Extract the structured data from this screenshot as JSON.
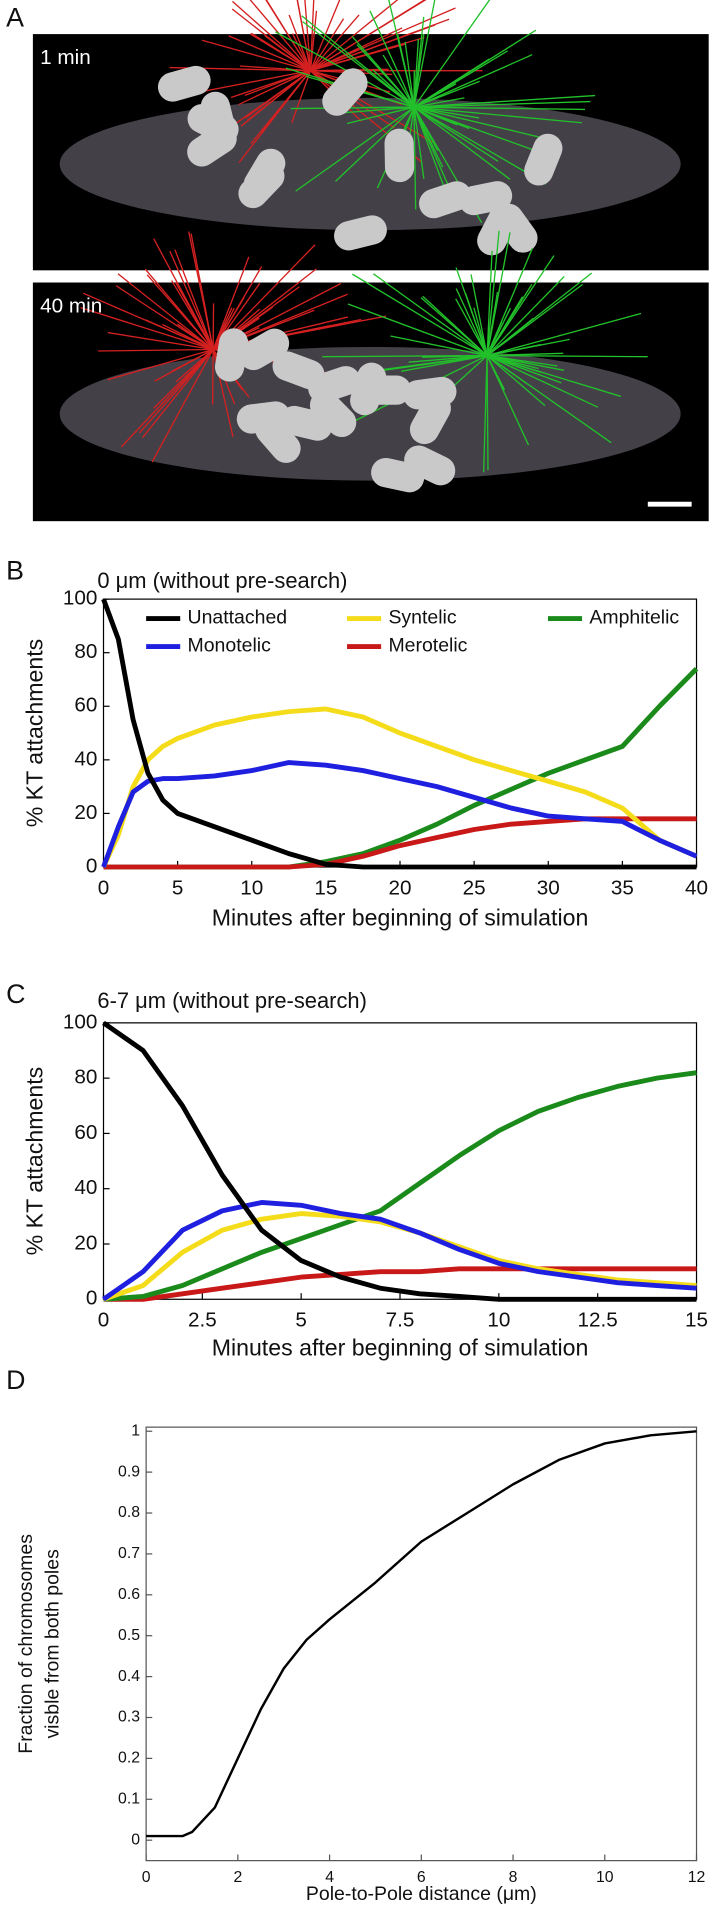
{
  "panel_a": {
    "panel_label": "A",
    "images": [
      {
        "label": "1 min"
      },
      {
        "label": "40 min"
      }
    ]
  },
  "chart_data": [
    {
      "type": "line",
      "panel_label": "B",
      "title": "0 μm (without pre-search)",
      "x_label": "Minutes after beginning of simulation",
      "y_label": "% KT attachments",
      "x": [
        0,
        1,
        2,
        3,
        4,
        5,
        7.5,
        10,
        12.5,
        15,
        17.5,
        20,
        22.5,
        25,
        27.5,
        30,
        32.5,
        35,
        37.5,
        40
      ],
      "xlim": [
        0,
        40
      ],
      "xticks": [
        0,
        5,
        10,
        15,
        20,
        25,
        30,
        35,
        40
      ],
      "ylim": [
        0,
        100
      ],
      "yticks": [
        0,
        20,
        40,
        60,
        80,
        100
      ],
      "legend": true,
      "series": [
        {
          "name": "Unattached",
          "color": "#000000",
          "values": [
            100,
            85,
            55,
            35,
            25,
            20,
            15,
            10,
            5,
            1,
            0,
            0,
            0,
            0,
            0,
            0,
            0,
            0,
            0,
            0
          ]
        },
        {
          "name": "Syntelic",
          "color": "#f5dc1a",
          "values": [
            0,
            12,
            30,
            40,
            45,
            48,
            53,
            56,
            58,
            59,
            56,
            50,
            45,
            40,
            36,
            32,
            28,
            22,
            10,
            4
          ]
        },
        {
          "name": "Amphitelic",
          "color": "#1a8a1a",
          "values": [
            0,
            0,
            0,
            0,
            0,
            0,
            0,
            0,
            0,
            2,
            5,
            10,
            16,
            23,
            29,
            35,
            40,
            45,
            60,
            74
          ]
        },
        {
          "name": "Monotelic",
          "color": "#1f1fe0",
          "values": [
            0,
            15,
            28,
            32,
            33,
            33,
            34,
            36,
            39,
            38,
            36,
            33,
            30,
            26,
            22,
            19,
            18,
            17,
            10,
            4
          ]
        },
        {
          "name": "Merotelic",
          "color": "#c81818",
          "values": [
            0,
            0,
            0,
            0,
            0,
            0,
            0,
            0,
            0,
            1,
            4,
            8,
            11,
            14,
            16,
            17,
            18,
            18,
            18,
            18
          ]
        }
      ]
    },
    {
      "type": "line",
      "panel_label": "C",
      "title": "6-7 μm (without pre-search)",
      "x_label": "Minutes after beginning of simulation",
      "y_label": "% KT attachments",
      "x": [
        0,
        1,
        2,
        3,
        4,
        5,
        6,
        7,
        8,
        9,
        10,
        11,
        12,
        13,
        14,
        15
      ],
      "xlim": [
        0,
        15
      ],
      "xticks": [
        0,
        2.5,
        5,
        7.5,
        10,
        12.5,
        15
      ],
      "ylim": [
        0,
        100
      ],
      "yticks": [
        0,
        20,
        40,
        60,
        80,
        100
      ],
      "legend": false,
      "series": [
        {
          "color": "#c81818",
          "values": [
            0,
            0,
            2,
            4,
            6,
            8,
            9,
            10,
            10,
            11,
            11,
            11,
            11,
            11,
            11,
            11
          ]
        },
        {
          "color": "#1a8a1a",
          "values": [
            0,
            1,
            5,
            11,
            17,
            22,
            27,
            32,
            42,
            52,
            61,
            68,
            73,
            77,
            80,
            82
          ]
        },
        {
          "color": "#f5dc1a",
          "values": [
            0,
            5,
            17,
            25,
            29,
            31,
            30,
            28,
            24,
            19,
            14,
            11,
            9,
            7,
            6,
            5
          ]
        },
        {
          "color": "#1f1fe0",
          "values": [
            0,
            10,
            25,
            32,
            35,
            34,
            31,
            29,
            24,
            18,
            13,
            10,
            8,
            6,
            5,
            4
          ]
        },
        {
          "color": "#000000",
          "values": [
            100,
            90,
            70,
            45,
            25,
            14,
            8,
            4,
            2,
            1,
            0,
            0,
            0,
            0,
            0,
            0
          ]
        }
      ]
    },
    {
      "type": "line",
      "panel_label": "D",
      "x_label": "Pole-to-Pole distance (μm)",
      "y_label": [
        "Fraction of chromosomes",
        "visble from both poles"
      ],
      "x": [
        0,
        0.8,
        1,
        1.5,
        2,
        2.5,
        3,
        3.5,
        4,
        5,
        6,
        7,
        8,
        9,
        10,
        11,
        12
      ],
      "xlim": [
        0,
        12
      ],
      "xticks": [
        0,
        2,
        4,
        6,
        8,
        10,
        12
      ],
      "ylim": [
        -0.05,
        1.01
      ],
      "yticks": [
        0,
        0.1,
        0.2,
        0.3,
        0.4,
        0.5,
        0.6,
        0.7,
        0.8,
        0.9,
        1
      ],
      "legend": false,
      "series": [
        {
          "color": "#000000",
          "values": [
            0.01,
            0.01,
            0.02,
            0.08,
            0.2,
            0.32,
            0.42,
            0.49,
            0.54,
            0.63,
            0.73,
            0.8,
            0.87,
            0.93,
            0.97,
            0.99,
            1
          ]
        }
      ]
    }
  ]
}
